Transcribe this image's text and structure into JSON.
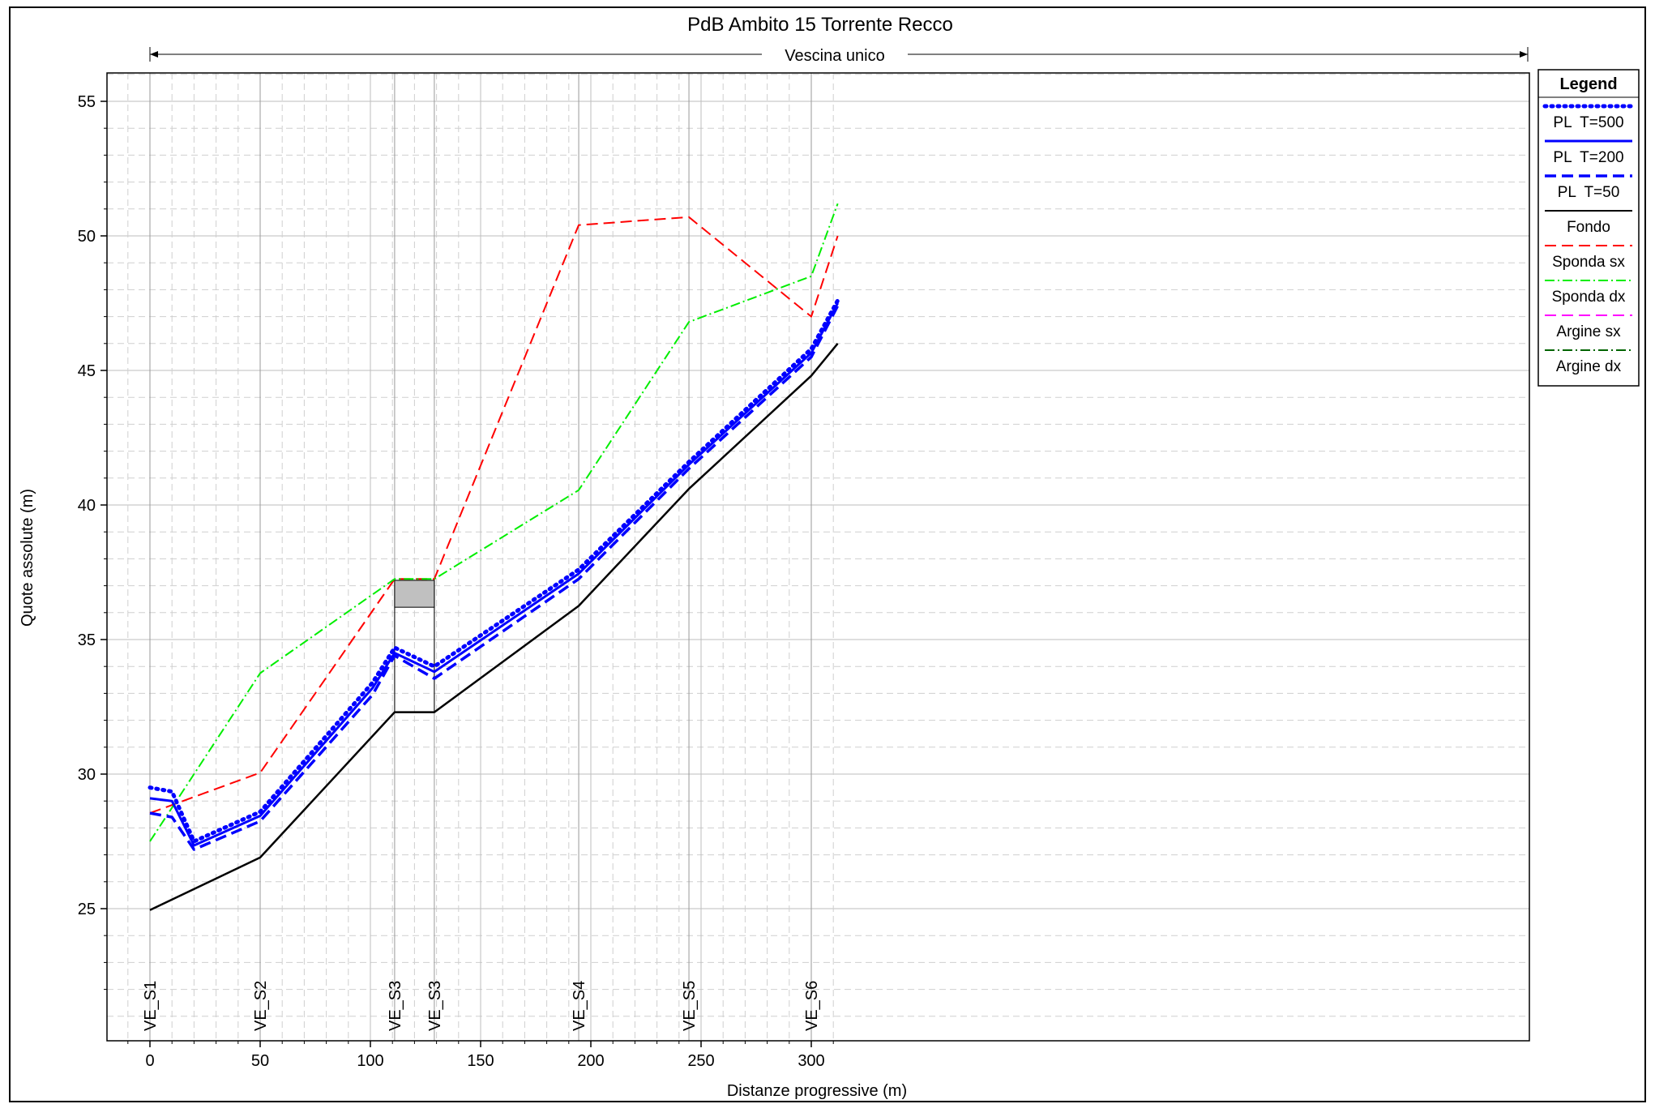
{
  "chart_data": {
    "type": "line",
    "title": "PdB Ambito 15 Torrente Recco",
    "reach_label": "Vescina unico",
    "xlabel": "Distanze progressive  (m)",
    "ylabel": "Quote assolute (m)",
    "xlim": [
      -10,
      312
    ],
    "ylim": [
      21.2,
      56
    ],
    "x_ticks": [
      0,
      50,
      100,
      150,
      200,
      250,
      300
    ],
    "y_ticks": [
      25,
      30,
      35,
      40,
      45,
      50,
      55
    ],
    "grid": true,
    "legend_position": "right",
    "legend_title": "Legend",
    "sections": [
      {
        "label": "VE_S1",
        "x": 0
      },
      {
        "label": "VE_S2",
        "x": 50
      },
      {
        "label": "VE_S3",
        "x": 111
      },
      {
        "label": "VE_S3",
        "x": 129
      },
      {
        "label": "VE_S4",
        "x": 194.5
      },
      {
        "label": "VE_S5",
        "x": 244.5
      },
      {
        "label": "VE_S6",
        "x": 300
      }
    ],
    "bridge": {
      "x_start": 111,
      "x_end": 129,
      "deck_top": 37.2,
      "deck_bottom": 36.2,
      "bottom": 32.3
    },
    "series": [
      {
        "name": "PL  T=500",
        "color": "#0000ff",
        "style": "dotted",
        "x": [
          0,
          10,
          20,
          50,
          101,
          111,
          129,
          194.5,
          244.5,
          300,
          312
        ],
        "y": [
          29.5,
          29.35,
          27.5,
          28.6,
          33.4,
          34.7,
          34.0,
          37.6,
          41.6,
          45.8,
          47.6
        ]
      },
      {
        "name": "PL  T=200",
        "color": "#0000ff",
        "style": "solid",
        "x": [
          0,
          10,
          20,
          50,
          101,
          111,
          129,
          194.5,
          244.5,
          300,
          312
        ],
        "y": [
          29.1,
          29.0,
          27.35,
          28.45,
          33.2,
          34.5,
          33.8,
          37.45,
          41.5,
          45.65,
          47.5
        ]
      },
      {
        "name": "PL  T=50",
        "color": "#0000ff",
        "style": "dashed",
        "x": [
          0,
          10,
          20,
          50,
          101,
          111,
          129,
          194.5,
          244.5,
          300,
          312
        ],
        "y": [
          28.55,
          28.4,
          27.2,
          28.25,
          32.95,
          34.4,
          33.55,
          37.25,
          41.35,
          45.5,
          47.4
        ]
      },
      {
        "name": "Fondo",
        "color": "#000000",
        "style": "solid",
        "x": [
          0,
          50,
          111,
          129,
          194.5,
          244.5,
          300,
          312
        ],
        "y": [
          24.95,
          26.9,
          32.3,
          32.3,
          36.25,
          40.6,
          44.8,
          46.0
        ]
      },
      {
        "name": "Sponda sx",
        "color": "#ff0000",
        "style": "dashed",
        "x": [
          0,
          50,
          111,
          129,
          194.5,
          244.5,
          300,
          312
        ],
        "y": [
          28.55,
          30.05,
          37.25,
          37.25,
          50.4,
          50.7,
          47.0,
          50.0
        ]
      },
      {
        "name": "Sponda dx",
        "color": "#00ee00",
        "style": "dashdot",
        "x": [
          0,
          50,
          111,
          129,
          194.5,
          244.5,
          300,
          312
        ],
        "y": [
          27.5,
          33.75,
          37.25,
          37.25,
          40.55,
          46.8,
          48.5,
          51.2
        ]
      },
      {
        "name": "Argine sx",
        "color": "#ff00ff",
        "style": "dashed",
        "x": [],
        "y": []
      },
      {
        "name": "Argine dx",
        "color": "#006400",
        "style": "dashdot",
        "x": [],
        "y": []
      }
    ]
  }
}
